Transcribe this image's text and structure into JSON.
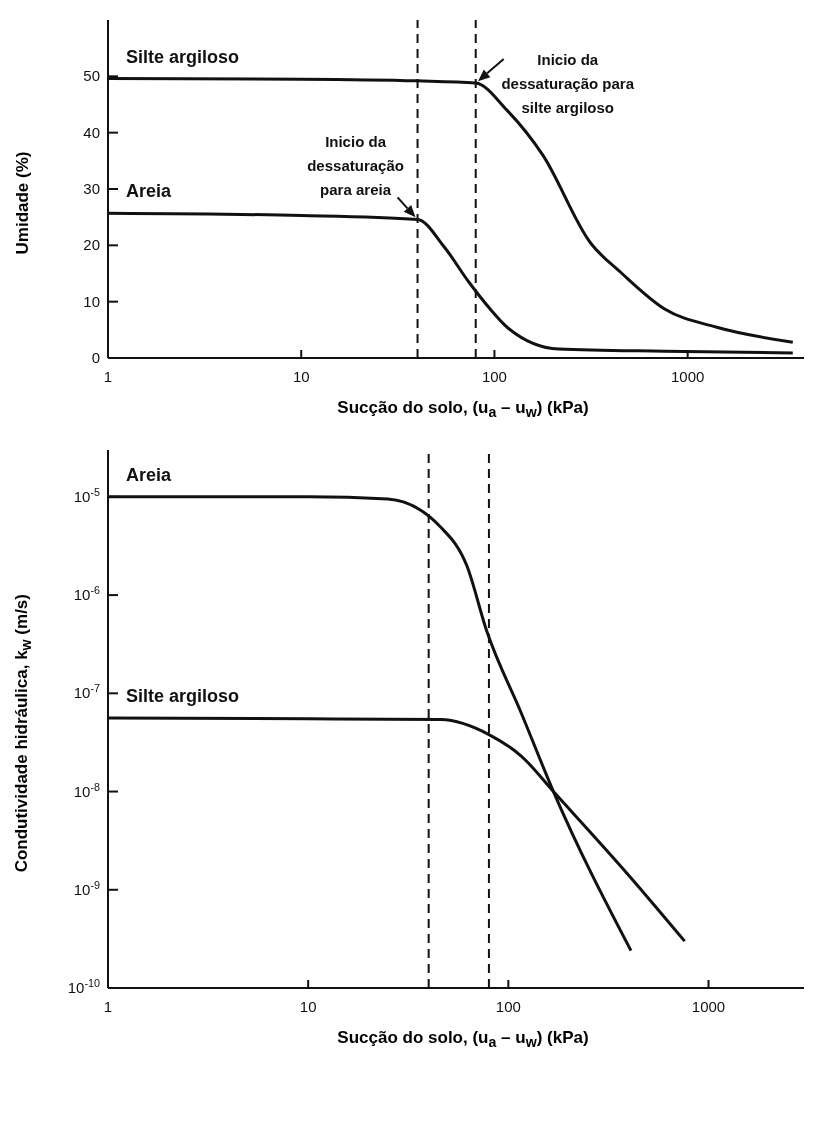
{
  "chart_data": [
    {
      "type": "line",
      "xlabel": "Sucção do solo, (u$_{a}$ – u$_{w}$) (kPa)",
      "ylabel": "Umidade (%)",
      "log": "x",
      "grid": false,
      "legend": false,
      "marker": "none",
      "line_style": "solid",
      "xlim": [
        1,
        4000
      ],
      "xticks": [
        1,
        10,
        100,
        1000
      ],
      "ylim": [
        0,
        60
      ],
      "yticks": [
        0,
        10,
        20,
        30,
        40,
        50
      ],
      "series": [
        {
          "name": "Silte argiloso",
          "color": "#111111",
          "x": [
            1,
            10,
            40,
            80,
            116,
            178,
            313,
            457,
            760,
            1400,
            3500
          ],
          "values": [
            49.6,
            49.5,
            49.2,
            48.8,
            44,
            36,
            20.5,
            15,
            8.7,
            5.5,
            2.8
          ]
        },
        {
          "name": "Areia",
          "color": "#111111",
          "x": [
            1,
            10,
            40,
            55,
            74,
            95,
            116,
            215,
            760,
            3500
          ],
          "values": [
            25.7,
            25.3,
            24.6,
            19.7,
            13.4,
            8.7,
            5.5,
            1.6,
            1.2,
            0.9
          ]
        }
      ],
      "ref_lines": [
        {
          "axis": "x",
          "value": 40,
          "line_style": "dashed",
          "color": "#111111"
        },
        {
          "axis": "x",
          "value": 80,
          "line_style": "dashed",
          "color": "#111111"
        }
      ],
      "annotations": [
        {
          "text": "Inicio da dessaturação para areia",
          "x": 40,
          "y": 24.6
        },
        {
          "text": "Inicio da dessaturação para silte argiloso",
          "x": 80,
          "y": 48.8
        }
      ]
    },
    {
      "type": "line",
      "xlabel": "Sucção do solo, (u$_{a}$ – u$_{w}$) (kPa)",
      "ylabel": "Condutividade hidráulica, k$_{w}$ (m/s)",
      "log": "xy",
      "grid": false,
      "legend": false,
      "marker": "none",
      "line_style": "solid",
      "xlim": [
        1,
        3000
      ],
      "xticks": [
        1,
        10,
        100,
        1000
      ],
      "ylim": [
        1e-10,
        3e-05
      ],
      "yticks": [
        {
          "value": 1e-10,
          "label": "10$^{-10}$"
        },
        {
          "value": 1e-09,
          "label": "10$^{-9}$"
        },
        {
          "value": 1e-08,
          "label": "10$^{-8}$"
        },
        {
          "value": 1e-07,
          "label": "10$^{-7}$"
        },
        {
          "value": 1e-06,
          "label": "10$^{-6}$"
        },
        {
          "value": 1e-05,
          "label": "10$^{-5}$"
        }
      ],
      "series": [
        {
          "name": "Areia",
          "color": "#111111",
          "x": [
            1,
            10,
            25,
            46,
            62,
            78,
            116,
            168,
            410
          ],
          "values": [
            1e-05,
            1e-05,
            9.5e-06,
            4.9e-06,
            2e-06,
            4.3e-07,
            6.3e-08,
            1e-08,
            2.4e-10
          ]
        },
        {
          "name": "Silte argiloso",
          "color": "#111111",
          "x": [
            1,
            10,
            46,
            80,
            116,
            168,
            400,
            760
          ],
          "values": [
            5.6e-08,
            5.5e-08,
            5.4e-08,
            3.8e-08,
            2.3e-08,
            1e-08,
            1.4e-09,
            3e-10
          ]
        }
      ],
      "ref_lines": [
        {
          "axis": "x",
          "value": 40,
          "line_style": "dashed",
          "color": "#111111"
        },
        {
          "axis": "x",
          "value": 80,
          "line_style": "dashed",
          "color": "#111111"
        }
      ]
    }
  ]
}
